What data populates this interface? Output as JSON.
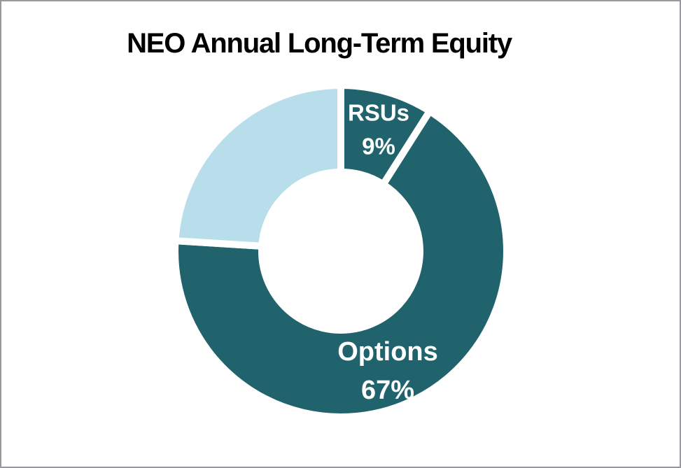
{
  "window": {
    "background": "#FFFFFF",
    "border_color": "#98989E"
  },
  "chart_data": {
    "type": "pie",
    "subtype": "donut",
    "title": "NEO Annual Long-Term Equity",
    "values_unit": "percent",
    "direction": "clockwise",
    "start_angle_deg": 0,
    "legend": "none",
    "gridlines": "off",
    "slice_separator_color": "#FFFFFF",
    "slices": [
      {
        "name": "RSUs",
        "value": 9,
        "color": "#20636D",
        "label_lines": [
          "RSUs",
          "9%"
        ],
        "label_color": "#FFFFFF"
      },
      {
        "name": "Options",
        "value": 67,
        "color": "#20636D",
        "label_lines": [
          "Options",
          "67%"
        ],
        "label_color": "#FFFFFF"
      },
      {
        "name": "",
        "value": 24,
        "color": "#B9DEEB",
        "label_lines": [],
        "label_color": null
      }
    ]
  }
}
